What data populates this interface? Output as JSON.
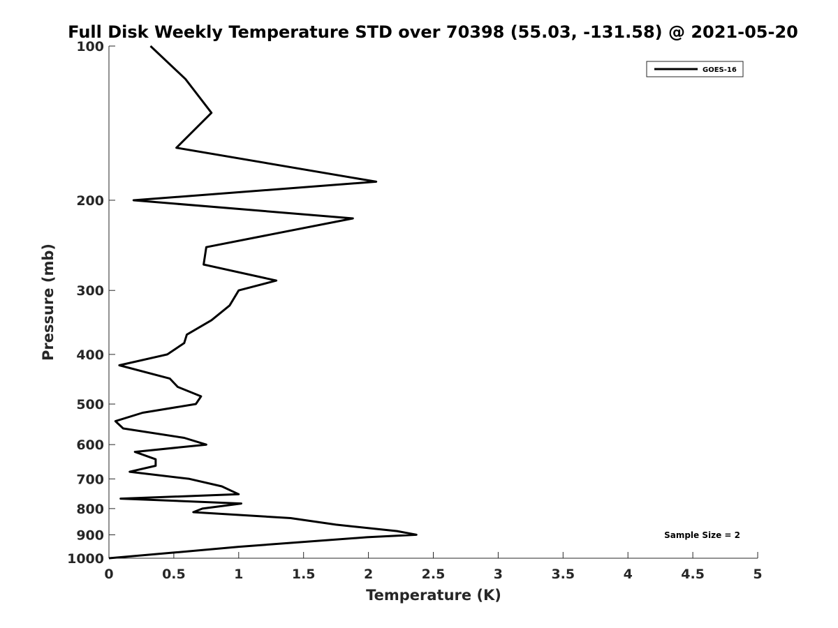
{
  "chart_data": {
    "type": "line",
    "title": "Full Disk Weekly Temperature STD over 70398 (55.03, -131.58) @ 2021-05-20",
    "xlabel": "Temperature (K)",
    "ylabel": "Pressure (mb)",
    "xlim": [
      0,
      5
    ],
    "ylim": [
      1000,
      100
    ],
    "y_scale": "log",
    "y_reversed": true,
    "x_ticks": [
      "0",
      "0.5",
      "1",
      "1.5",
      "2",
      "2.5",
      "3",
      "3.5",
      "4",
      "4.5",
      "5"
    ],
    "y_ticks": [
      "100",
      "200",
      "300",
      "400",
      "500",
      "600",
      "700",
      "800",
      "900",
      "1000"
    ],
    "grid": false,
    "legend_position": "top-right",
    "annotation": "Sample Size = 2",
    "series": [
      {
        "name": "GOES-16",
        "color": "#000000",
        "points": [
          [
            0.32,
            100
          ],
          [
            0.59,
            116
          ],
          [
            0.79,
            135
          ],
          [
            0.52,
            158
          ],
          [
            2.06,
            184
          ],
          [
            0.19,
            200
          ],
          [
            1.88,
            217
          ],
          [
            0.75,
            247
          ],
          [
            0.73,
            267
          ],
          [
            1.29,
            287
          ],
          [
            1.0,
            300
          ],
          [
            0.93,
            321
          ],
          [
            0.79,
            343
          ],
          [
            0.6,
            366
          ],
          [
            0.58,
            380
          ],
          [
            0.45,
            400
          ],
          [
            0.08,
            420
          ],
          [
            0.47,
            446
          ],
          [
            0.53,
            463
          ],
          [
            0.71,
            483
          ],
          [
            0.67,
            500
          ],
          [
            0.26,
            520
          ],
          [
            0.05,
            540
          ],
          [
            0.11,
            558
          ],
          [
            0.58,
            582
          ],
          [
            0.75,
            600
          ],
          [
            0.2,
            620
          ],
          [
            0.36,
            641
          ],
          [
            0.36,
            660
          ],
          [
            0.16,
            678
          ],
          [
            0.62,
            700
          ],
          [
            0.87,
            724
          ],
          [
            1.0,
            750
          ],
          [
            0.09,
            765
          ],
          [
            1.02,
            782
          ],
          [
            0.72,
            800
          ],
          [
            0.65,
            813
          ],
          [
            1.4,
            835
          ],
          [
            1.75,
            860
          ],
          [
            2.22,
            885
          ],
          [
            2.37,
            900
          ],
          [
            1.99,
            910
          ],
          [
            1.0,
            950
          ],
          [
            0.5,
            975
          ],
          [
            0.0,
            1000
          ]
        ]
      }
    ]
  }
}
